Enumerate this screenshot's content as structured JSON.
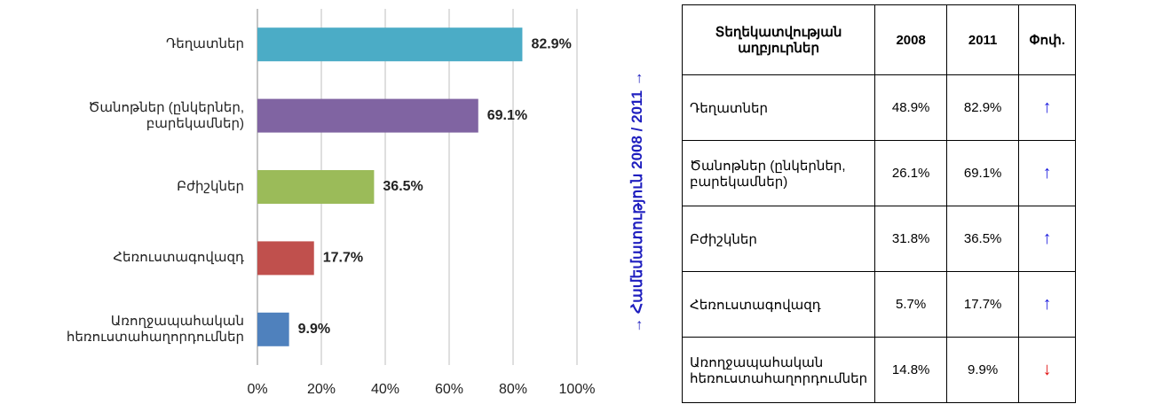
{
  "chart_data": {
    "type": "hbar",
    "categories": [
      "Դեղատներ",
      "Ծանոթներ (ընկերներ,\nբարեկամներ)",
      "Բժիշկներ",
      "Հեռուստագովազդ",
      "Առողջապահական\nհեռուստահաղորդումներ"
    ],
    "values": [
      82.9,
      69.1,
      36.5,
      17.7,
      9.9
    ],
    "value_labels": [
      "82.9%",
      "69.1%",
      "36.5%",
      "17.7%",
      "9.9%"
    ],
    "colors": [
      "#4bacc6",
      "#8064a2",
      "#9bbb59",
      "#c0504d",
      "#4f81bd"
    ],
    "xlim": [
      0,
      100
    ],
    "xticks": [
      {
        "value": 0,
        "label": "0%"
      },
      {
        "value": 20,
        "label": "20%"
      },
      {
        "value": 40,
        "label": "40%"
      },
      {
        "value": 60,
        "label": "60%"
      },
      {
        "value": 80,
        "label": "80%"
      },
      {
        "value": 100,
        "label": "100%"
      }
    ],
    "grid": true
  },
  "side_label": "→ Համեմատություն 2008 / 2011 →",
  "table": {
    "header": [
      "Տեղեկատվության աղբյուրներ",
      "2008",
      "2011",
      "Փոփ."
    ],
    "rows": [
      [
        "Դեղատներ",
        "48.9%",
        "82.9%",
        "↑"
      ],
      [
        "Ծանոթներ (ընկերներ, բարեկամներ)",
        "26.1%",
        "69.1%",
        "↑"
      ],
      [
        "Բժիշկներ",
        "31.8%",
        "36.5%",
        "↑"
      ],
      [
        "Հեռուստագովազդ",
        "5.7%",
        "17.7%",
        "↑"
      ],
      [
        "Առողջապահական հեռուստահաղորդումներ",
        "14.8%",
        "9.9%",
        "↓"
      ]
    ]
  }
}
